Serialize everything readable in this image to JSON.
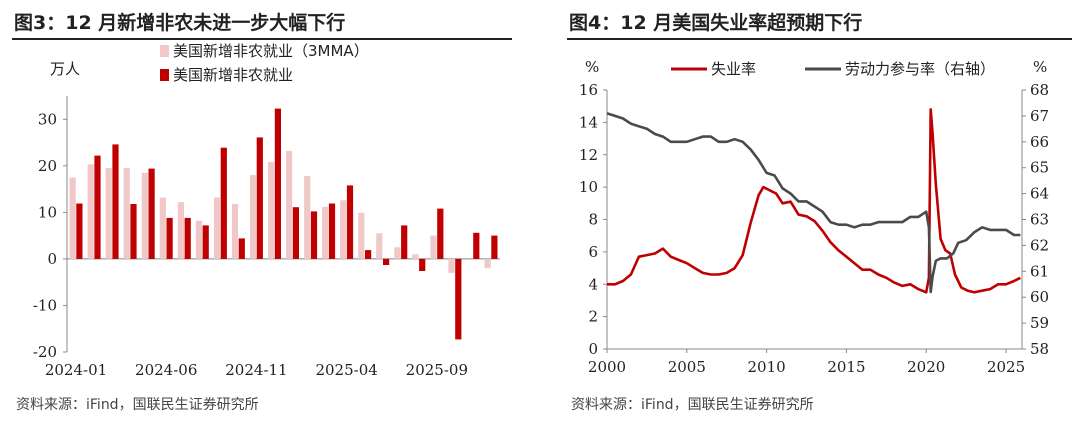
{
  "chart_data": [
    {
      "type": "bar",
      "title": "图3：12 月新增非农未进一步大幅下行",
      "ylabel": "万人",
      "ylim": [
        -20,
        35
      ],
      "yticks": [
        30,
        20,
        10,
        0,
        -10,
        -20
      ],
      "categories": [
        "2024-01",
        "2024-02",
        "2024-03",
        "2024-04",
        "2024-05",
        "2024-06",
        "2024-07",
        "2024-08",
        "2024-09",
        "2024-10",
        "2024-11",
        "2024-12",
        "2025-01",
        "2025-02",
        "2025-03",
        "2025-04",
        "2025-05",
        "2025-06",
        "2025-07",
        "2025-08",
        "2025-09",
        "2025-10",
        "2025-11",
        "2025-12"
      ],
      "xtick_labels": [
        "2024-01",
        "2024-06",
        "2024-11",
        "2025-04",
        "2025-09"
      ],
      "series": [
        {
          "name": "美国新增非农就业（3MMA）",
          "color": "#f0c8c8",
          "values": [
            17.5,
            20.3,
            19.5,
            19.5,
            18.5,
            13.2,
            12.2,
            8.2,
            13.2,
            11.8,
            18.0,
            20.8,
            23.2,
            17.8,
            11.2,
            12.6,
            9.9,
            5.5,
            2.5,
            1.0,
            5.0,
            -3.0,
            null,
            -2.0
          ]
        },
        {
          "name": "美国新增非农就业",
          "color": "#c00000",
          "values": [
            11.9,
            22.2,
            24.6,
            11.8,
            19.4,
            8.8,
            8.8,
            7.2,
            23.9,
            4.4,
            26.1,
            32.3,
            11.1,
            10.2,
            11.9,
            15.8,
            1.9,
            -1.3,
            7.2,
            -2.6,
            10.8,
            -17.3,
            5.6,
            5.0
          ]
        }
      ],
      "legend": "top-left",
      "grid": false
    },
    {
      "type": "line",
      "title": "图4：12 月美国失业率超预期下行",
      "ylabel_left": "%",
      "ylabel_right": "%",
      "xlim": [
        2000,
        2026
      ],
      "ylim_left": [
        0,
        16
      ],
      "ylim_right": [
        58,
        68
      ],
      "xticks": [
        2000,
        2005,
        2010,
        2015,
        2020,
        2025
      ],
      "yticks_left": [
        0,
        2,
        4,
        6,
        8,
        10,
        12,
        14,
        16
      ],
      "yticks_right": [
        58,
        59,
        60,
        61,
        62,
        63,
        64,
        65,
        66,
        67,
        68
      ],
      "legend": "top",
      "grid": false,
      "series": [
        {
          "name": "失业率",
          "axis": "left",
          "color": "#c00000",
          "x": [
            2000.0,
            2000.5,
            2001.0,
            2001.5,
            2002.0,
            2002.5,
            2003.0,
            2003.5,
            2004.0,
            2004.5,
            2005.0,
            2005.5,
            2006.0,
            2006.5,
            2007.0,
            2007.5,
            2008.0,
            2008.5,
            2009.0,
            2009.5,
            2009.8,
            2010.2,
            2010.6,
            2011.0,
            2011.5,
            2012.0,
            2012.5,
            2013.0,
            2013.5,
            2014.0,
            2014.5,
            2015.0,
            2015.5,
            2016.0,
            2016.5,
            2017.0,
            2017.5,
            2018.0,
            2018.5,
            2019.0,
            2019.5,
            2020.0,
            2020.17,
            2020.28,
            2020.4,
            2020.6,
            2020.9,
            2021.2,
            2021.5,
            2021.8,
            2022.2,
            2022.6,
            2023.0,
            2023.5,
            2024.0,
            2024.5,
            2025.0,
            2025.5,
            2025.9
          ],
          "y": [
            4.0,
            4.0,
            4.2,
            4.6,
            5.7,
            5.8,
            5.9,
            6.2,
            5.7,
            5.5,
            5.3,
            5.0,
            4.7,
            4.6,
            4.6,
            4.7,
            5.0,
            5.8,
            7.8,
            9.5,
            10.0,
            9.8,
            9.6,
            9.0,
            9.1,
            8.3,
            8.2,
            7.9,
            7.3,
            6.6,
            6.1,
            5.7,
            5.3,
            4.9,
            4.9,
            4.6,
            4.4,
            4.1,
            3.9,
            4.0,
            3.7,
            3.5,
            4.4,
            14.8,
            13.3,
            10.2,
            6.8,
            6.1,
            5.9,
            4.6,
            3.8,
            3.6,
            3.5,
            3.6,
            3.7,
            4.0,
            4.0,
            4.2,
            4.4
          ]
        },
        {
          "name": "劳动力参与率（右轴）",
          "axis": "right",
          "color": "#4a4a4a",
          "x": [
            2000.0,
            2000.5,
            2001.0,
            2001.5,
            2002.0,
            2002.5,
            2003.0,
            2003.5,
            2004.0,
            2004.5,
            2005.0,
            2005.5,
            2006.0,
            2006.5,
            2007.0,
            2007.5,
            2008.0,
            2008.5,
            2009.0,
            2009.5,
            2010.0,
            2010.5,
            2011.0,
            2011.5,
            2012.0,
            2012.5,
            2013.0,
            2013.5,
            2014.0,
            2014.5,
            2015.0,
            2015.5,
            2016.0,
            2016.5,
            2017.0,
            2017.5,
            2018.0,
            2018.5,
            2019.0,
            2019.5,
            2020.0,
            2020.17,
            2020.28,
            2020.4,
            2020.6,
            2020.9,
            2021.3,
            2021.7,
            2022.0,
            2022.5,
            2023.0,
            2023.5,
            2024.0,
            2024.5,
            2025.0,
            2025.5,
            2025.9
          ],
          "y": [
            67.1,
            67.0,
            66.9,
            66.7,
            66.6,
            66.5,
            66.3,
            66.2,
            66.0,
            66.0,
            66.0,
            66.1,
            66.2,
            66.2,
            66.0,
            66.0,
            66.1,
            66.0,
            65.7,
            65.3,
            64.8,
            64.7,
            64.2,
            64.0,
            63.7,
            63.7,
            63.5,
            63.3,
            62.9,
            62.8,
            62.8,
            62.7,
            62.8,
            62.8,
            62.9,
            62.9,
            62.9,
            62.9,
            63.1,
            63.1,
            63.3,
            62.7,
            60.2,
            60.8,
            61.4,
            61.5,
            61.5,
            61.7,
            62.1,
            62.2,
            62.5,
            62.7,
            62.6,
            62.6,
            62.6,
            62.4,
            62.4
          ]
        }
      ]
    }
  ],
  "footer": {
    "source_left": "资料来源：iFind，国联民生证券研究所",
    "source_right": "资料来源：iFind，国联民生证券研究所"
  }
}
